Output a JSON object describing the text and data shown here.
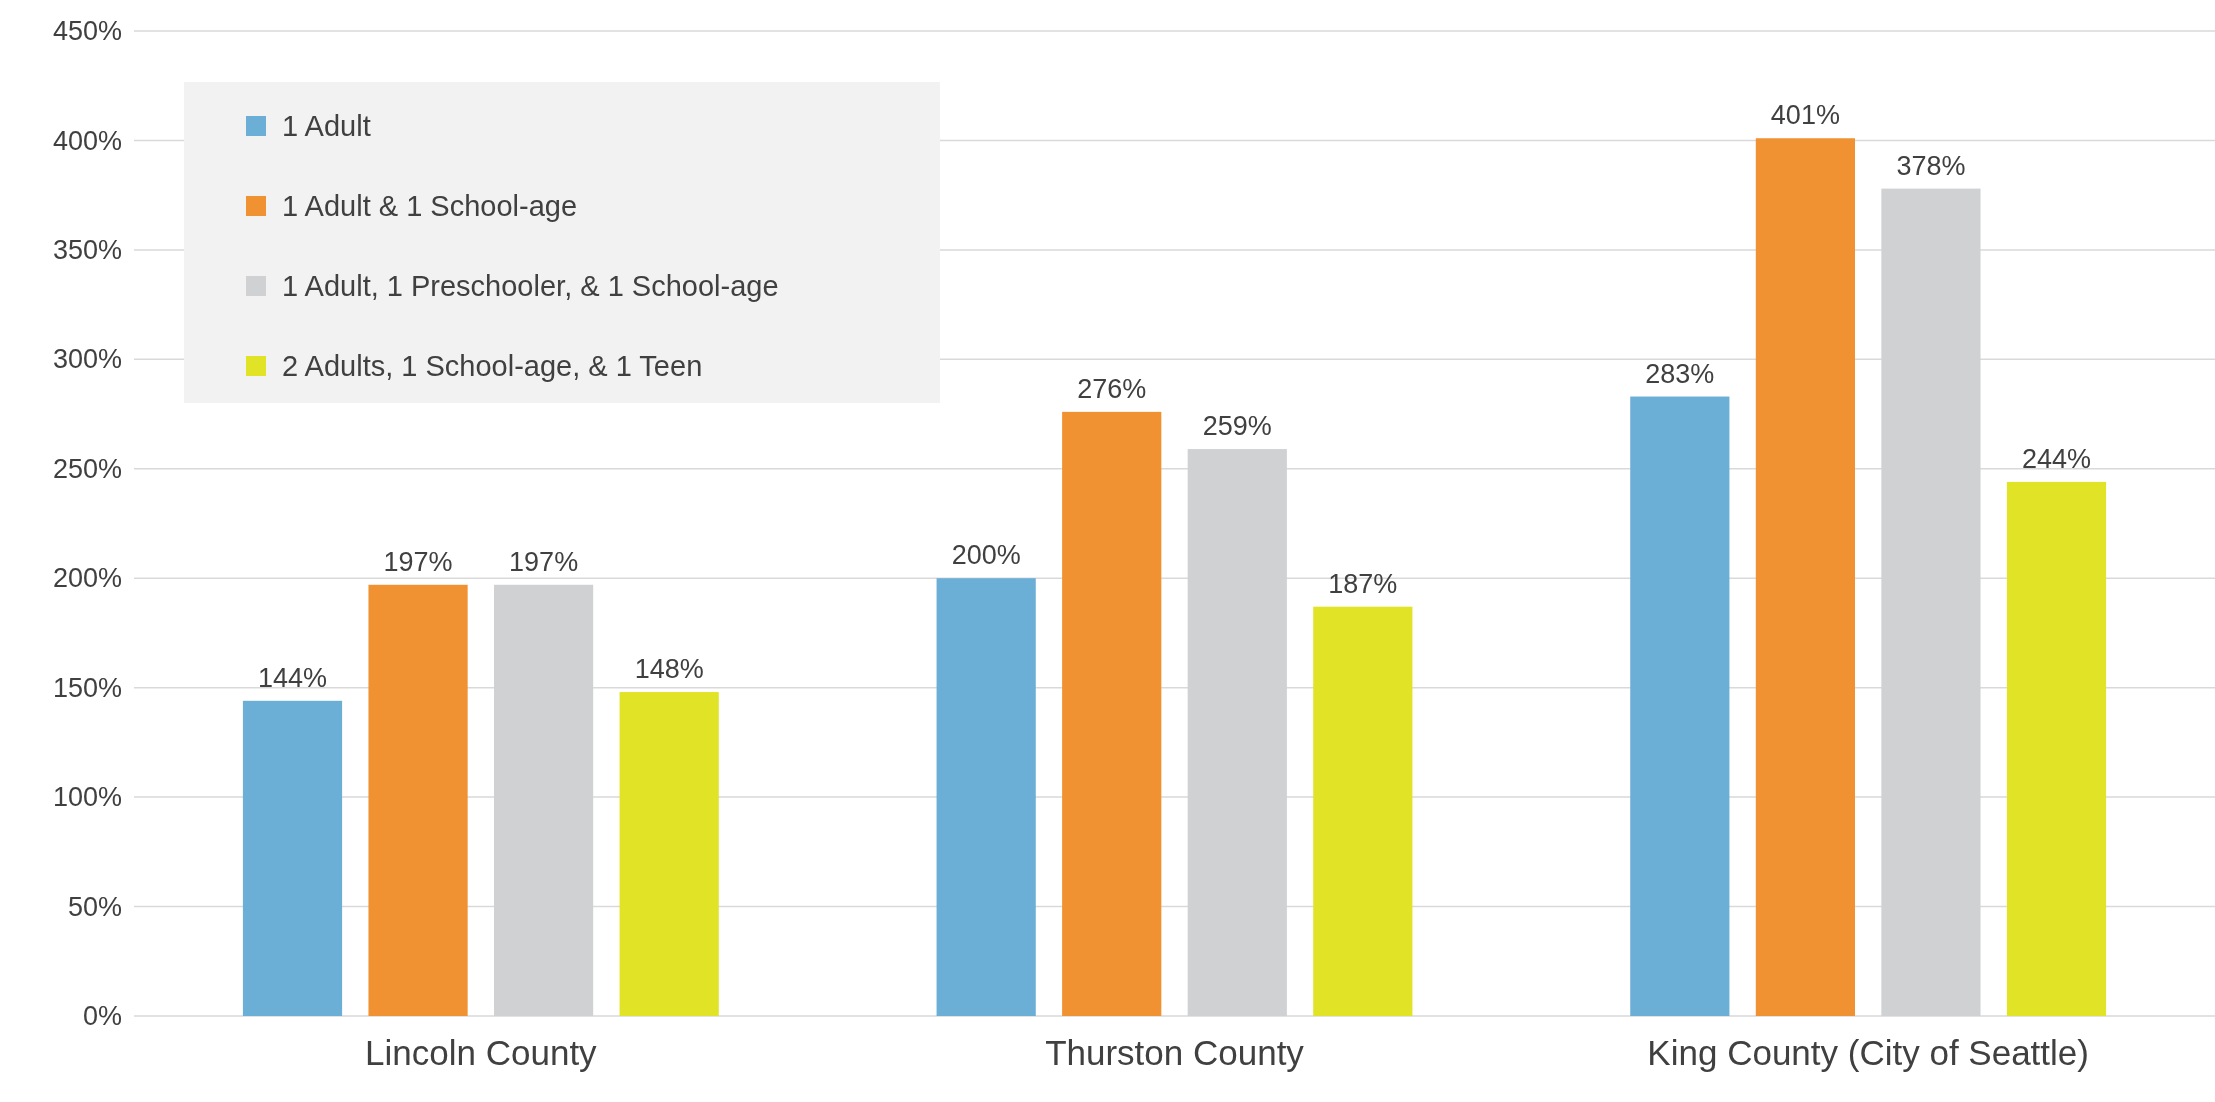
{
  "chart_data": {
    "type": "bar",
    "categories": [
      "Lincoln County",
      "Thurston County",
      "King County (City of Seattle)"
    ],
    "series": [
      {
        "name": "1 Adult",
        "color": "#6baed6",
        "values": [
          144,
          200,
          283
        ],
        "value_labels": [
          "144%",
          "200%",
          "283%"
        ]
      },
      {
        "name": "1 Adult & 1 School-age",
        "color": "#f09132",
        "values": [
          197,
          276,
          401
        ],
        "value_labels": [
          "197%",
          "276%",
          "401%"
        ]
      },
      {
        "name": "1 Adult, 1 Preschooler, & 1 School-age",
        "color": "#d0d1d3",
        "values": [
          197,
          259,
          378
        ],
        "value_labels": [
          "197%",
          "259%",
          "378%"
        ]
      },
      {
        "name": "2 Adults, 1 School-age, & 1 Teen",
        "color": "#e1e326",
        "values": [
          148,
          187,
          244
        ],
        "value_labels": [
          "148%",
          "187%",
          "244%"
        ]
      }
    ],
    "ylim": [
      0,
      450
    ],
    "yticks": [
      {
        "value": 0,
        "label": "0%"
      },
      {
        "value": 50,
        "label": "50%"
      },
      {
        "value": 100,
        "label": "100%"
      },
      {
        "value": 150,
        "label": "150%"
      },
      {
        "value": 200,
        "label": "200%"
      },
      {
        "value": 250,
        "label": "250%"
      },
      {
        "value": 300,
        "label": "300%"
      },
      {
        "value": 350,
        "label": "350%"
      },
      {
        "value": 400,
        "label": "400%"
      },
      {
        "value": 450,
        "label": "450%"
      }
    ],
    "grid": "y",
    "legend": "top left"
  }
}
